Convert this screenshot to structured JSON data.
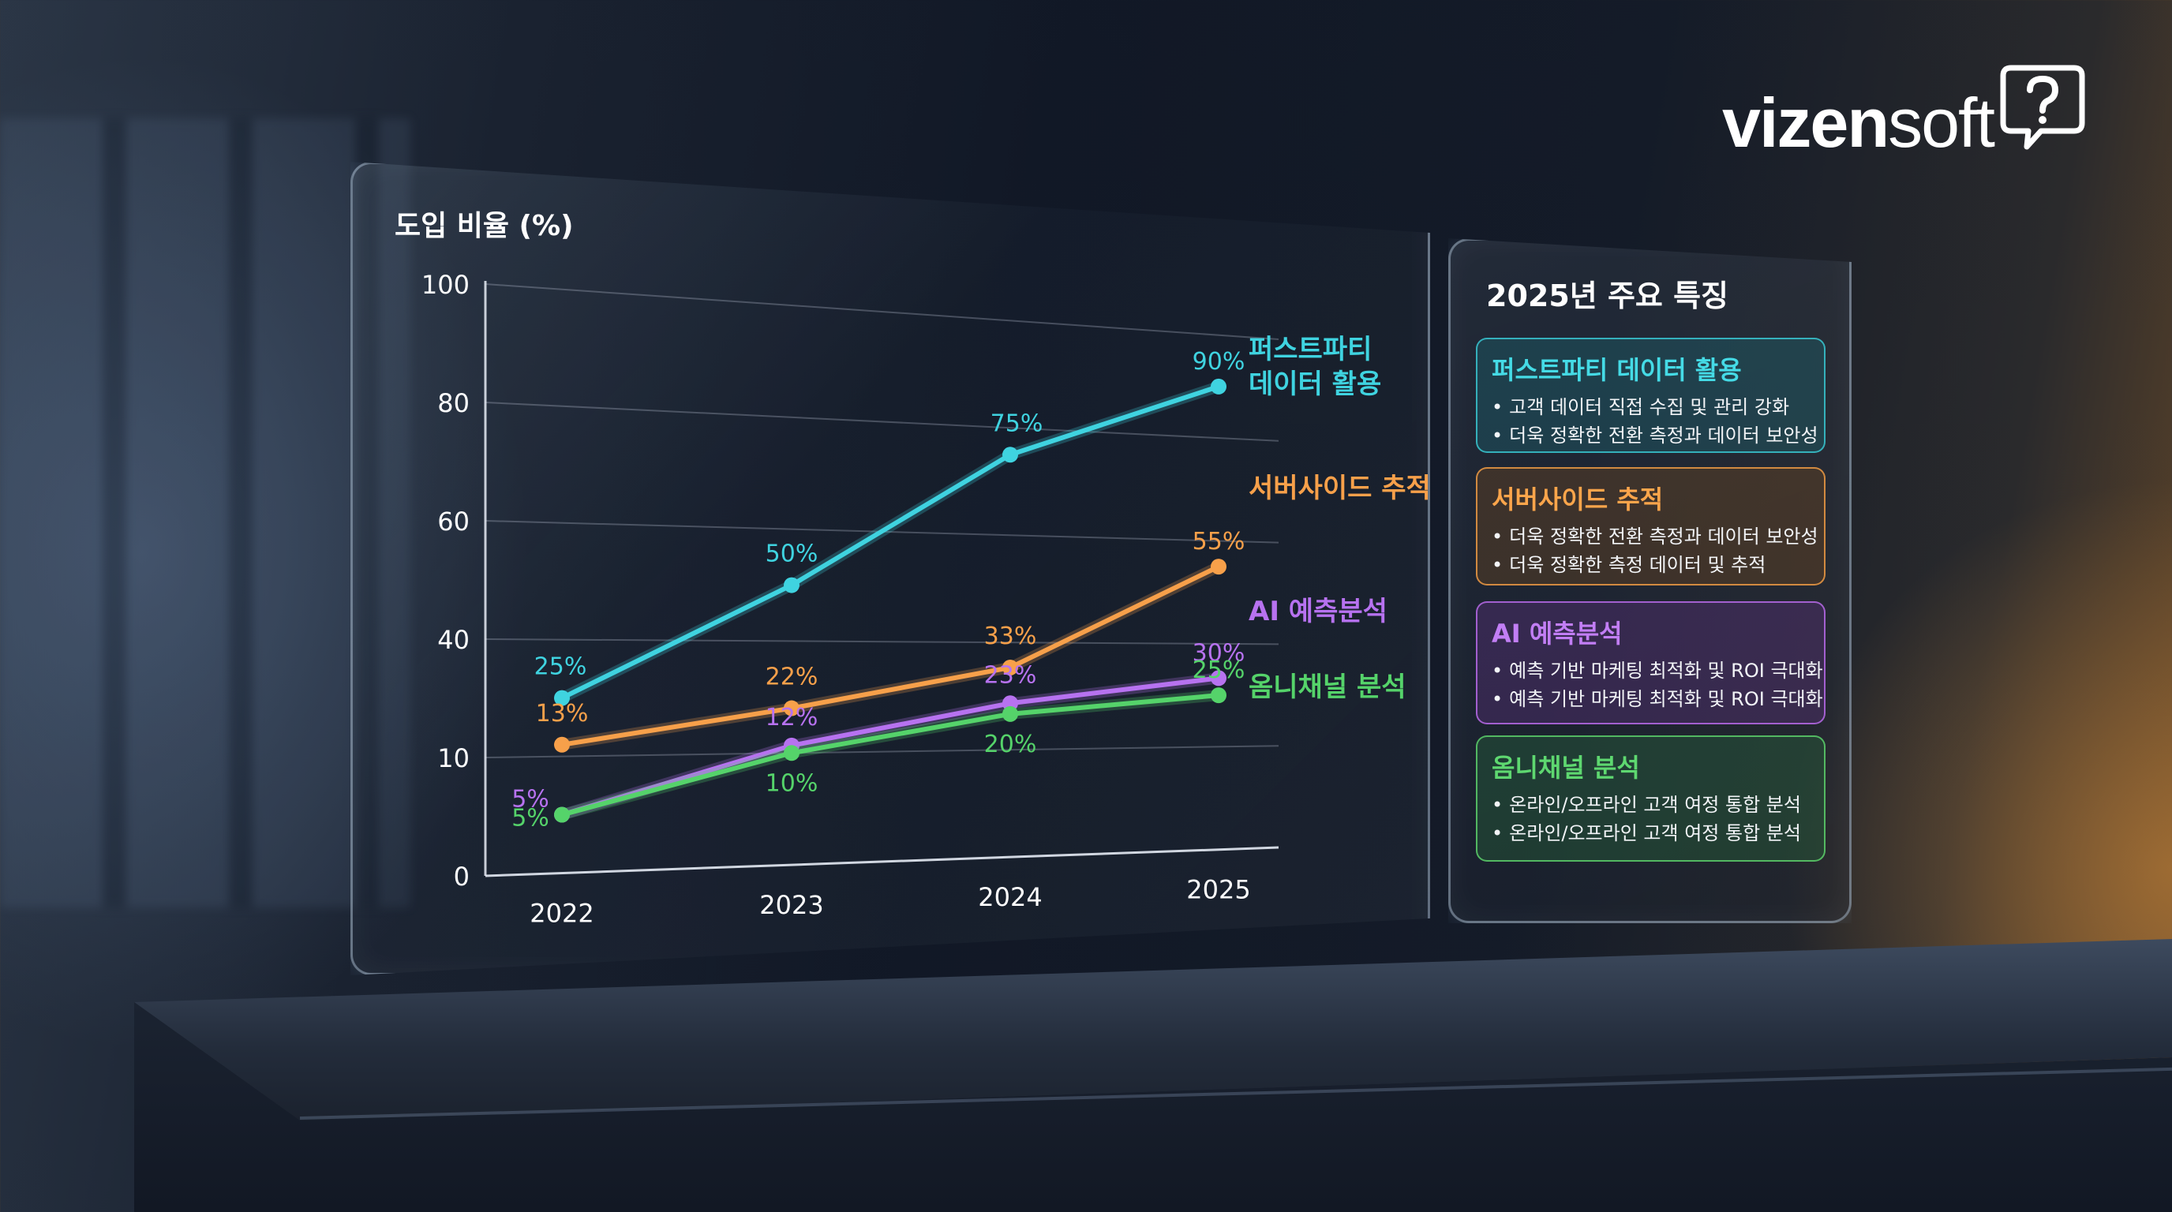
{
  "logo": {
    "text_bold": "vizen",
    "text_light": "soft",
    "icon": "question-bubble-icon"
  },
  "chart_data": {
    "type": "line",
    "title": "",
    "ylabel": "도입 비율 (%)",
    "xlabel": "",
    "categories": [
      "2022",
      "2023",
      "2024",
      "2025"
    ],
    "y_ticks": [
      "0",
      "10",
      "40",
      "60",
      "80",
      "100"
    ],
    "ylim": [
      0,
      100
    ],
    "grid": true,
    "legend": "right-end-labels",
    "series": [
      {
        "name": "퍼스트파티 데이터 활용",
        "label_lines": [
          "퍼스트파티",
          "데이터 활용"
        ],
        "color": "#3fd3e0",
        "values": [
          25,
          50,
          75,
          90
        ],
        "labels": [
          "25%",
          "50%",
          "75%",
          "90%"
        ]
      },
      {
        "name": "서버사이드 추적",
        "label_lines": [
          "서버사이드 추적"
        ],
        "color": "#f7a04a",
        "values": [
          13,
          22,
          33,
          55
        ],
        "labels": [
          "13%",
          "22%",
          "33%",
          "55%"
        ]
      },
      {
        "name": "AI 예측분석",
        "label_lines": [
          "AI 예측분석"
        ],
        "color": "#b772f0",
        "values": [
          5,
          12,
          23,
          30
        ],
        "labels": [
          "5%",
          "12%",
          "23%",
          "30%"
        ]
      },
      {
        "name": "옴니채널 분석",
        "label_lines": [
          "옴니채널 분석"
        ],
        "color": "#55d36a",
        "values": [
          5,
          10,
          20,
          25
        ],
        "labels": [
          "5%",
          "10%",
          "20%",
          "25%"
        ]
      }
    ]
  },
  "features": {
    "title": "2025년 주요 특징",
    "cards": [
      {
        "title": "퍼스트파티 데이터 활용",
        "items": [
          "고객 데이터 직접 수집 및 관리 강화",
          "더욱 정확한 전환 측정과 데이터 보안성"
        ]
      },
      {
        "title": "서버사이드 추적",
        "items": [
          "더욱 정확한 전환 측정과 데이터 보안성",
          "더욱 정확한 측정 데이터 및 추적"
        ]
      },
      {
        "title": "AI 예측분석",
        "items": [
          "예측 기반 마케팅 최적화 및 ROI 극대화",
          "예측 기반 마케팅 최적화 및 ROI 극대화"
        ]
      },
      {
        "title": "옴니채널 분석",
        "items": [
          "온라인/오프라인 고객 여정 통합 분석",
          "온라인/오프라인 고객 여정 통합 분석"
        ]
      }
    ]
  }
}
